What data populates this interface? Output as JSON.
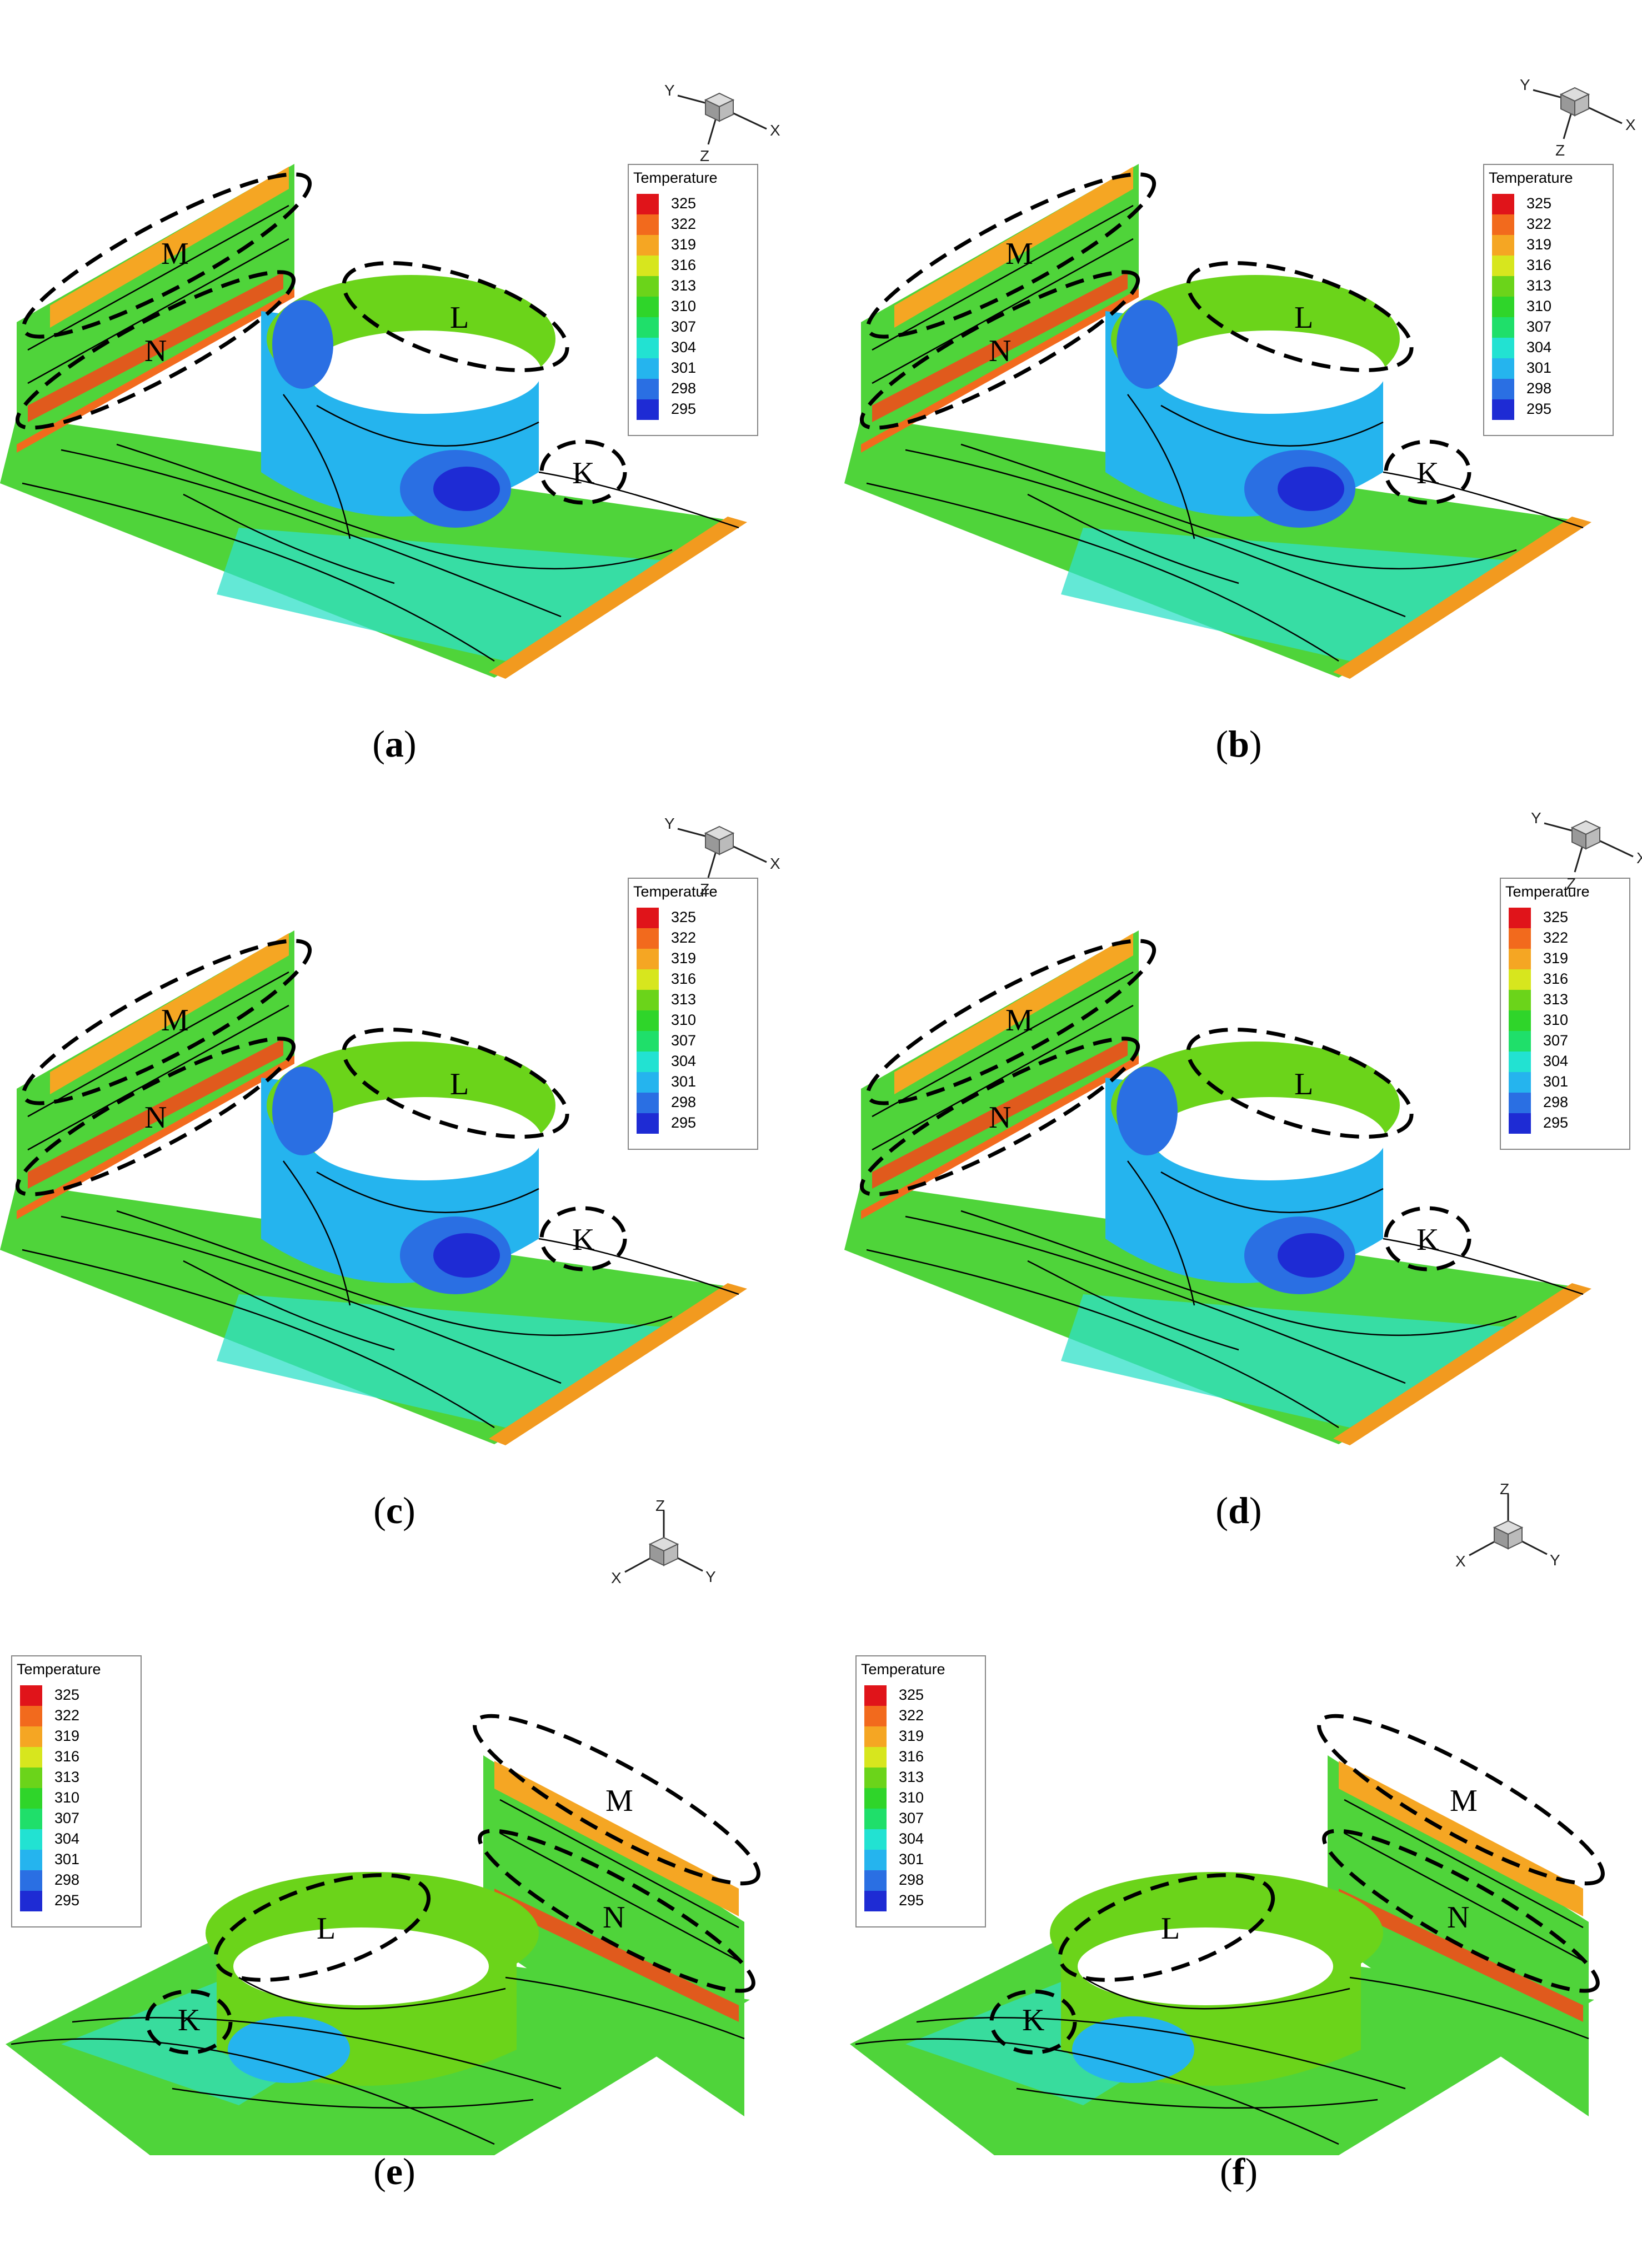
{
  "legend": {
    "title": "Temperature",
    "levels": [
      "325",
      "322",
      "319",
      "316",
      "313",
      "310",
      "307",
      "304",
      "301",
      "298",
      "295"
    ],
    "colors": [
      "#e0141a",
      "#f26a1d",
      "#f5a623",
      "#d7e61e",
      "#6bd41a",
      "#2fd52a",
      "#1fdf6a",
      "#22e2d2",
      "#25b4ee",
      "#2a6fe3",
      "#1e2bd4"
    ]
  },
  "axes": {
    "x": "X",
    "y": "Y",
    "z": "Z"
  },
  "zone_labels": {
    "m": "M",
    "n": "N",
    "l": "L",
    "k": "K"
  },
  "panels": [
    {
      "id": "a",
      "caption_open": "(",
      "caption_letter": "a",
      "caption_close": ")"
    },
    {
      "id": "b",
      "caption_open": "(",
      "caption_letter": "b",
      "caption_close": ")"
    },
    {
      "id": "c",
      "caption_open": "(",
      "caption_letter": "c",
      "caption_close": ")"
    },
    {
      "id": "d",
      "caption_open": "(",
      "caption_letter": "d",
      "caption_close": ")"
    },
    {
      "id": "e",
      "caption_open": "(",
      "caption_letter": "e",
      "caption_close": ")"
    },
    {
      "id": "f",
      "caption_open": "(",
      "caption_letter": "f",
      "caption_close": ")"
    }
  ]
}
